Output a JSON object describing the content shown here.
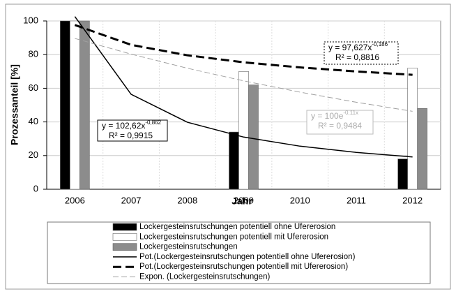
{
  "chart_data": {
    "type": "bar",
    "categories": [
      "2006",
      "2007",
      "2008",
      "2009",
      "2010",
      "2011",
      "2012"
    ],
    "xlabel": "Jahr",
    "ylabel": "Prozessanteil [%]",
    "ylim": [
      0,
      100
    ],
    "yticks": [
      0,
      20,
      40,
      60,
      80,
      100
    ],
    "grid": true,
    "series": [
      {
        "name": "Lockergesteinsrutschungen potentiell ohne Ufererosion",
        "type": "bar",
        "color": "#000000",
        "values": [
          100,
          null,
          null,
          34,
          null,
          null,
          18
        ]
      },
      {
        "name": "Lockergesteinsrutschungen potentiell mit Ufererosion",
        "type": "bar",
        "color": "#ffffff",
        "values": [
          100,
          null,
          null,
          70,
          null,
          null,
          72
        ]
      },
      {
        "name": "Lockergesteinsrutschungen",
        "type": "bar",
        "color": "#8c8c8c",
        "values": [
          100,
          null,
          null,
          62,
          null,
          null,
          48
        ]
      },
      {
        "name": "Pot.(Lockergesteinsrutschungen potentiell ohne Ufererosion)",
        "type": "line",
        "color": "#000000",
        "dash": "solid",
        "values": [
          102.6,
          56.4,
          39.8,
          31.0,
          25.6,
          21.9,
          19.2
        ]
      },
      {
        "name": "Pot.(Lockergesteinsrutschungen potentiell mit Ufererosion)",
        "type": "line",
        "color": "#000000",
        "dash": "dashed-thick",
        "values": [
          97.6,
          85.8,
          79.6,
          75.4,
          72.4,
          70.0,
          68.0
        ]
      },
      {
        "name": "Expon. (Lockergesteinsrutschungen)",
        "type": "line",
        "color": "#a0a0a0",
        "dash": "dashed-thin",
        "values": [
          89.6,
          80.3,
          71.9,
          64.4,
          57.7,
          51.7,
          46.3
        ]
      }
    ],
    "annotations": [
      {
        "equation": "y = 102,62x",
        "exponent": "-0,862",
        "r2": "R² = 0,9915"
      },
      {
        "equation": "y = 97,627x",
        "exponent": "-0,186",
        "r2": "R² = 0,8816"
      },
      {
        "equation": "y = 100e",
        "exponent": "-0,11x",
        "r2": "R² = 0,9484"
      }
    ]
  }
}
